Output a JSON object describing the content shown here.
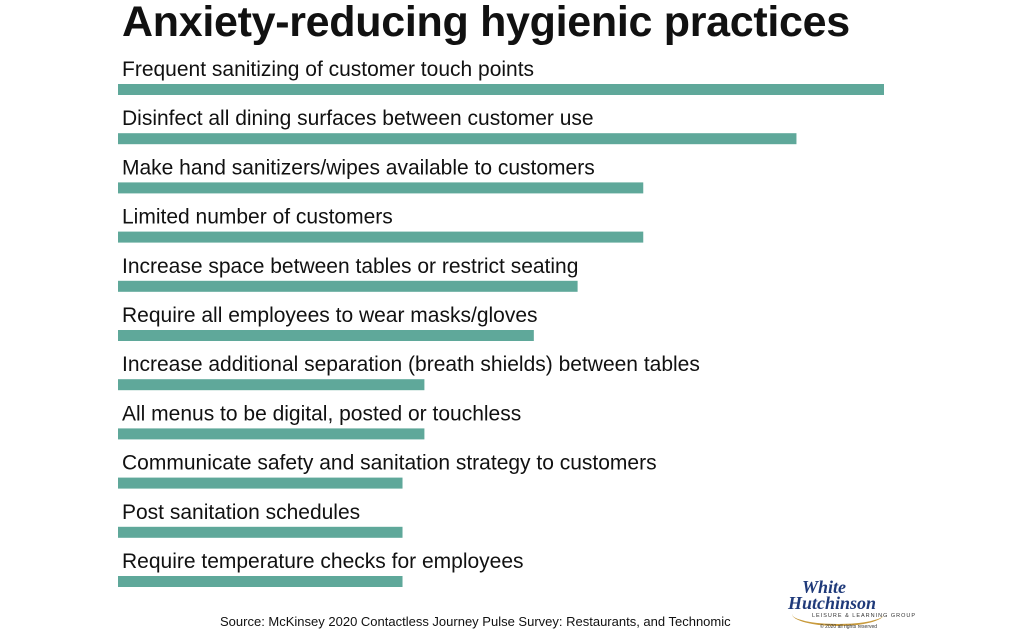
{
  "chart_data": {
    "type": "bar",
    "orientation": "horizontal",
    "title": "Anxiety-reducing hygienic practices",
    "categories": [
      "Frequent sanitizing of customer touch points",
      "Disinfect all dining surfaces between customer use",
      "Make hand sanitizers/wipes available to customers",
      "Limited number of customers",
      "Increase space between tables or restrict seating",
      "Require all employees to wear masks/gloves",
      "Increase additional separation (breath shields) between tables",
      "All menus to be digital, posted or touchless",
      "Communicate safety and sanitation strategy to customers",
      "Post sanitation schedules",
      "Require temperature checks for employees"
    ],
    "values": [
      70,
      62,
      48,
      48,
      42,
      38,
      28,
      28,
      26,
      26,
      26
    ],
    "xlim": [
      0,
      70
    ],
    "bar_color": "#5fa89a",
    "grid": false,
    "legend": "none"
  },
  "source": "Source: McKinsey 2020 Contactless Journey Pulse Survey: Restaurants, and Technomic",
  "logo": {
    "line1": "White",
    "line2": "Hutchinson",
    "tagline": "LEISURE & LEARNING GROUP",
    "copyright": "© 2020 all rights reserved"
  }
}
